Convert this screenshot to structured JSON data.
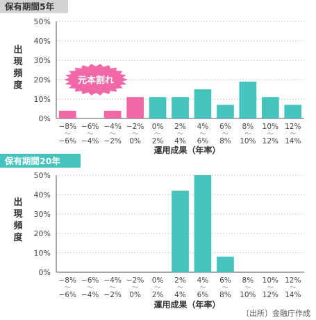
{
  "source": "〔出所〕金融庁作成",
  "colors": {
    "loss": "#f069a6",
    "gain": "#45c3bd",
    "badge": "#f069a6",
    "panel1_tag_bg": "#d2d3d4",
    "panel2_tag_bg": "#45c3bd"
  },
  "chart_data": [
    {
      "type": "bar",
      "title": "保有期間5年",
      "ylabel": "出現頻度",
      "xlabel": "運用成果（年率）",
      "ylim": [
        0,
        50
      ],
      "yticks": [
        "0%",
        "10%",
        "20%",
        "30%",
        "40%",
        "50%"
      ],
      "categories": [
        [
          "−8%",
          "〜",
          "−6%"
        ],
        [
          "−6%",
          "〜",
          "−4%"
        ],
        [
          "−4%",
          "〜",
          "−2%"
        ],
        [
          "−2%",
          "〜",
          "0%"
        ],
        [
          "0%",
          "〜",
          "2%"
        ],
        [
          "2%",
          "〜",
          "4%"
        ],
        [
          "4%",
          "〜",
          "6%"
        ],
        [
          "6%",
          "〜",
          "8%"
        ],
        [
          "8%",
          "〜",
          "10%"
        ],
        [
          "10%",
          "〜",
          "12%"
        ],
        [
          "12%",
          "〜",
          "14%"
        ]
      ],
      "values": [
        4,
        0,
        4,
        11,
        11,
        11,
        15,
        7,
        19,
        11,
        7
      ],
      "loss_category_count": 4,
      "annotation": "元本割れ"
    },
    {
      "type": "bar",
      "title": "保有期間20年",
      "ylabel": "出現頻度",
      "xlabel": "運用成果（年率）",
      "ylim": [
        0,
        50
      ],
      "yticks": [
        "0%",
        "10%",
        "20%",
        "30%",
        "40%",
        "50%"
      ],
      "categories": [
        [
          "−8%",
          "〜",
          "−6%"
        ],
        [
          "−6%",
          "〜",
          "−4%"
        ],
        [
          "−4%",
          "〜",
          "−2%"
        ],
        [
          "−2%",
          "〜",
          "0%"
        ],
        [
          "0%",
          "〜",
          "2%"
        ],
        [
          "2%",
          "〜",
          "4%"
        ],
        [
          "4%",
          "〜",
          "6%"
        ],
        [
          "6%",
          "〜",
          "8%"
        ],
        [
          "8%",
          "〜",
          "10%"
        ],
        [
          "10%",
          "〜",
          "12%"
        ],
        [
          "12%",
          "〜",
          "14%"
        ]
      ],
      "values": [
        0,
        0,
        0,
        0,
        0,
        42,
        50,
        8,
        0,
        0,
        0
      ],
      "loss_category_count": 4
    }
  ]
}
